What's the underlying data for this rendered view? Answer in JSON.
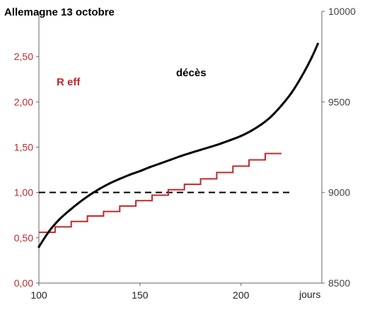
{
  "chart_data": {
    "type": "line",
    "title": "Allemagne 13 octobre",
    "xlabel": "jours",
    "x_ticks": [
      "100",
      "150",
      "200"
    ],
    "xlim": [
      100,
      240
    ],
    "y_left": {
      "ylim": [
        0,
        3
      ],
      "ticks": [
        "0,00",
        "0,50",
        "1,00",
        "1,50",
        "2,00",
        "2,50"
      ],
      "color": "#c0282d"
    },
    "y_right": {
      "ylim": [
        8500,
        10000
      ],
      "ticks": [
        "8500",
        "9000",
        "9500",
        "10000"
      ],
      "color": "#444444"
    },
    "grid": false,
    "annotations": [
      "R eff",
      "décès"
    ],
    "reference_line": {
      "axis": "left",
      "y": 1.0,
      "style": "dashed"
    },
    "series": [
      {
        "name": "R eff",
        "axis": "left",
        "style": "step",
        "color": "#c0282d",
        "x": [
          100,
          108,
          116,
          124,
          132,
          140,
          148,
          156,
          164,
          172,
          180,
          188,
          196,
          204,
          212
        ],
        "y": [
          0.56,
          0.62,
          0.68,
          0.74,
          0.79,
          0.85,
          0.91,
          0.97,
          1.03,
          1.09,
          1.15,
          1.22,
          1.29,
          1.36,
          1.43
        ]
      },
      {
        "name": "décès",
        "axis": "right",
        "color": "#000000",
        "x": [
          100,
          105,
          110,
          115,
          120,
          125,
          130,
          135,
          140,
          145,
          150,
          155,
          160,
          165,
          170,
          175,
          180,
          185,
          190,
          195,
          200,
          205,
          210,
          215,
          220,
          225,
          230,
          235,
          238
        ],
        "y": [
          8700,
          8785,
          8850,
          8900,
          8945,
          8985,
          9020,
          9050,
          9075,
          9098,
          9118,
          9140,
          9160,
          9180,
          9200,
          9218,
          9235,
          9252,
          9270,
          9290,
          9312,
          9340,
          9375,
          9420,
          9480,
          9550,
          9640,
          9745,
          9820
        ]
      }
    ]
  }
}
